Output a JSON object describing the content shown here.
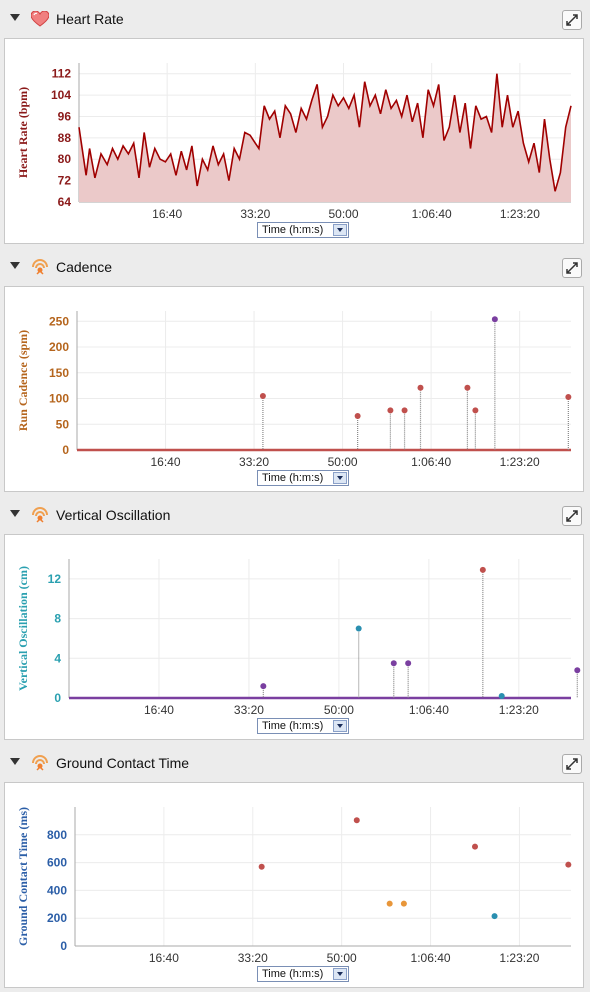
{
  "panels": [
    {
      "id": "hr",
      "title": "Heart Rate",
      "icon": "heart-icon",
      "select_label": "Time (h:m:s)",
      "y_label": "Heart Rate (bpm)",
      "y_color": "#8b1a1a",
      "line_color": "#a00000",
      "fill_color": "#ebc9c9"
    },
    {
      "id": "cad",
      "title": "Cadence",
      "icon": "running-sensor-icon",
      "select_label": "Time (h:m:s)",
      "y_label": "Run Cadence (spm)",
      "y_color": "#b5651d",
      "line_color": "#c0504d"
    },
    {
      "id": "vo",
      "title": "Vertical Oscillation",
      "icon": "running-sensor-icon",
      "select_label": "Time (h:m:s)",
      "y_label": "Vertical Oscillation (cm)",
      "y_color": "#2aa0b0",
      "line_color": "#7a3fa0"
    },
    {
      "id": "gct",
      "title": "Ground Contact Time",
      "icon": "running-sensor-icon",
      "select_label": "Time (h:m:s)",
      "y_label": "Ground Contact Time (ms)",
      "y_color": "#2b5ea7"
    }
  ],
  "chart_data": [
    {
      "type": "area",
      "ylabel": "Heart Rate (bpm)",
      "xlabel": "Time (h:m:s)",
      "x_ticks": [
        "16:40",
        "33:20",
        "50:00",
        "1:06:40",
        "1:23:20"
      ],
      "x_tick_seconds": [
        1000,
        2000,
        3000,
        4000,
        5000
      ],
      "xlim_seconds": [
        0,
        5580
      ],
      "ylim": [
        64,
        116
      ],
      "y_ticks": [
        64,
        72,
        80,
        88,
        96,
        104,
        112
      ],
      "grid": true,
      "series": [
        {
          "x_seconds": [
            0,
            80,
            120,
            180,
            250,
            320,
            380,
            440,
            500,
            560,
            620,
            680,
            740,
            800,
            860,
            920,
            980,
            1040,
            1100,
            1160,
            1220,
            1280,
            1340,
            1400,
            1460,
            1520,
            1580,
            1640,
            1700,
            1760,
            1820,
            1880,
            1940,
            2000,
            2040,
            2100,
            2160,
            2220,
            2280,
            2340,
            2400,
            2460,
            2520,
            2580,
            2640,
            2700,
            2760,
            2820,
            2880,
            2940,
            3000,
            3060,
            3120,
            3180,
            3240,
            3300,
            3360,
            3420,
            3480,
            3540,
            3600,
            3660,
            3720,
            3780,
            3840,
            3900,
            3960,
            4020,
            4080,
            4140,
            4200,
            4260,
            4320,
            4380,
            4440,
            4500,
            4560,
            4620,
            4680,
            4740,
            4800,
            4860,
            4920,
            4980,
            5040,
            5100,
            5160,
            5220,
            5280,
            5340,
            5400,
            5460,
            5520,
            5580
          ],
          "values": [
            92,
            74,
            84,
            73,
            82,
            78,
            84,
            80,
            85,
            82,
            86,
            73,
            90,
            77,
            84,
            80,
            79,
            82,
            74,
            83,
            76,
            85,
            70,
            80,
            76,
            85,
            78,
            82,
            72,
            84,
            80,
            90,
            89,
            86,
            84,
            100,
            95,
            98,
            88,
            100,
            97,
            90,
            99,
            95,
            102,
            108,
            92,
            96,
            104,
            100,
            103,
            99,
            104,
            92,
            109,
            100,
            104,
            97,
            106,
            99,
            102,
            96,
            104,
            94,
            101,
            88,
            106,
            100,
            108,
            87,
            92,
            104,
            90,
            101,
            84,
            100,
            95,
            96,
            90,
            112,
            92,
            104,
            92,
            98,
            86,
            79,
            86,
            75,
            95,
            80,
            68,
            75,
            92,
            100
          ]
        }
      ]
    },
    {
      "type": "scatter",
      "ylabel": "Run Cadence (spm)",
      "xlabel": "Time (h:m:s)",
      "x_ticks": [
        "16:40",
        "33:20",
        "50:00",
        "1:06:40",
        "1:23:20"
      ],
      "x_tick_seconds": [
        1000,
        2000,
        3000,
        4000,
        5000
      ],
      "xlim_seconds": [
        0,
        5580
      ],
      "ylim": [
        0,
        270
      ],
      "y_ticks": [
        0,
        50,
        100,
        150,
        200,
        250
      ],
      "grid": true,
      "baseline": 0,
      "points": [
        {
          "x_seconds": 2100,
          "value": 105,
          "color": "#c0504d"
        },
        {
          "x_seconds": 3170,
          "value": 66,
          "color": "#c0504d"
        },
        {
          "x_seconds": 3540,
          "value": 77,
          "color": "#c0504d"
        },
        {
          "x_seconds": 3700,
          "value": 77,
          "color": "#c0504d"
        },
        {
          "x_seconds": 3880,
          "value": 121,
          "color": "#c0504d"
        },
        {
          "x_seconds": 4410,
          "value": 121,
          "color": "#c0504d"
        },
        {
          "x_seconds": 4500,
          "value": 77,
          "color": "#c0504d"
        },
        {
          "x_seconds": 4720,
          "value": 254,
          "color": "#7a3fa0"
        },
        {
          "x_seconds": 5550,
          "value": 103,
          "color": "#c0504d"
        }
      ]
    },
    {
      "type": "scatter",
      "ylabel": "Vertical Oscillation (cm)",
      "xlabel": "Time (h:m:s)",
      "x_ticks": [
        "16:40",
        "33:20",
        "50:00",
        "1:06:40",
        "1:23:20"
      ],
      "x_tick_seconds": [
        1000,
        2000,
        3000,
        4000,
        5000
      ],
      "xlim_seconds": [
        0,
        5580
      ],
      "ylim": [
        0,
        14
      ],
      "y_ticks": [
        0,
        4,
        8,
        12
      ],
      "grid": true,
      "baseline": 0,
      "points": [
        {
          "x_seconds": 2160,
          "value": 1.2,
          "color": "#7a3fa0"
        },
        {
          "x_seconds": 3220,
          "value": 7.0,
          "color": "#2a8fb0"
        },
        {
          "x_seconds": 3610,
          "value": 3.5,
          "color": "#7a3fa0"
        },
        {
          "x_seconds": 3770,
          "value": 3.5,
          "color": "#7a3fa0"
        },
        {
          "x_seconds": 4600,
          "value": 12.9,
          "color": "#c0504d"
        },
        {
          "x_seconds": 4810,
          "value": 0.2,
          "color": "#2a8fb0"
        },
        {
          "x_seconds": 5650,
          "value": 2.8,
          "color": "#7a3fa0"
        }
      ]
    },
    {
      "type": "scatter",
      "ylabel": "Ground Contact Time (ms)",
      "xlabel": "Time (h:m:s)",
      "x_ticks": [
        "16:40",
        "33:20",
        "50:00",
        "1:06:40",
        "1:23:20"
      ],
      "x_tick_seconds": [
        1000,
        2000,
        3000,
        4000,
        5000
      ],
      "xlim_seconds": [
        0,
        5580
      ],
      "ylim": [
        0,
        1000
      ],
      "y_ticks": [
        0,
        200,
        400,
        600,
        800
      ],
      "grid": true,
      "points": [
        {
          "x_seconds": 2100,
          "value": 570,
          "color": "#c0504d"
        },
        {
          "x_seconds": 3170,
          "value": 905,
          "color": "#c0504d"
        },
        {
          "x_seconds": 3540,
          "value": 305,
          "color": "#e8963a"
        },
        {
          "x_seconds": 3700,
          "value": 305,
          "color": "#e8963a"
        },
        {
          "x_seconds": 4500,
          "value": 715,
          "color": "#c0504d"
        },
        {
          "x_seconds": 4720,
          "value": 215,
          "color": "#2a8fb0"
        },
        {
          "x_seconds": 5550,
          "value": 585,
          "color": "#c0504d"
        }
      ]
    }
  ]
}
